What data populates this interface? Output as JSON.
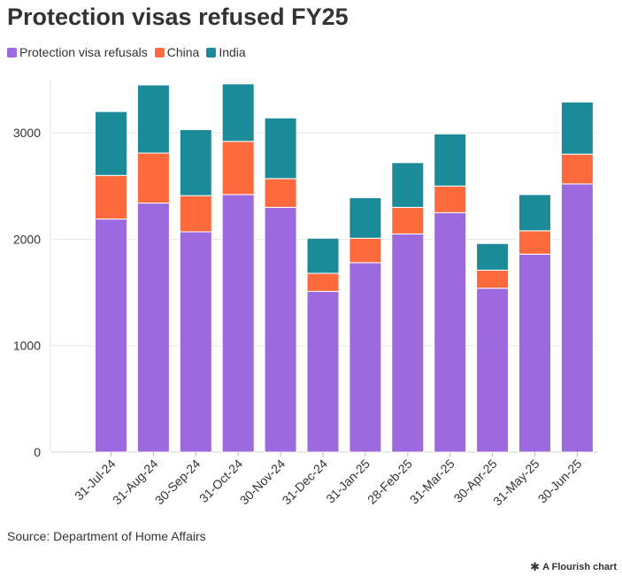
{
  "title": "Protection visas refused FY25",
  "source": "Source: Department of Home Affairs",
  "credit": "A Flourish chart",
  "chart_data": {
    "type": "bar",
    "stacked": true,
    "title": "Protection visas refused FY25",
    "xlabel": "",
    "ylabel": "",
    "ylim": [
      0,
      3500
    ],
    "yticks": [
      0,
      1000,
      2000,
      3000
    ],
    "grid": true,
    "legend_position": "top-left",
    "categories": [
      "31-Jul-24",
      "31-Aug-24",
      "30-Sep-24",
      "31-Oct-24",
      "30-Nov-24",
      "31-Dec-24",
      "31-Jan-25",
      "28-Feb-25",
      "31-Mar-25",
      "30-Apr-25",
      "31-May-25",
      "30-Jun-25"
    ],
    "series": [
      {
        "name": "Protection visa refusals",
        "color": "#9c6ade",
        "values": [
          2190,
          2340,
          2070,
          2420,
          2300,
          1510,
          1780,
          2050,
          2250,
          1540,
          1860,
          2520
        ]
      },
      {
        "name": "China",
        "color": "#ff6a3d",
        "values": [
          410,
          470,
          340,
          500,
          270,
          170,
          230,
          250,
          250,
          170,
          220,
          280
        ]
      },
      {
        "name": "India",
        "color": "#1b8a99",
        "values": [
          600,
          640,
          620,
          540,
          570,
          330,
          380,
          420,
          490,
          250,
          340,
          490
        ]
      }
    ]
  }
}
